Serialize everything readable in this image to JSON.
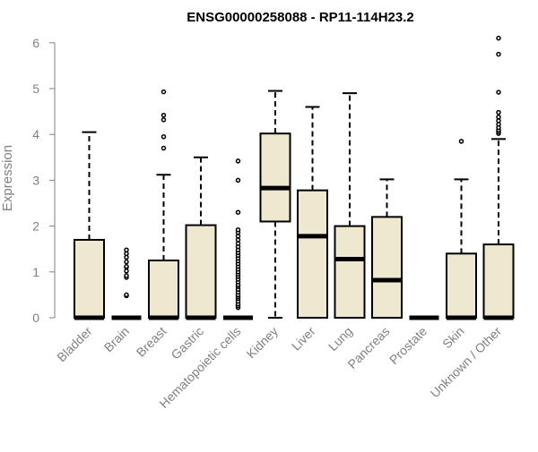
{
  "chart_data": {
    "type": "box",
    "title": "ENSG00000258088 - RP11-114H23.2",
    "xlabel": "",
    "ylabel": "Expression",
    "ylim": [
      0,
      6
    ],
    "yticks": [
      "0",
      "1",
      "2",
      "3",
      "4",
      "5",
      "6"
    ],
    "grid": false,
    "legend": "none",
    "colors": {
      "box_fill": "#efe8d0",
      "stroke": "#000000",
      "axis_text": "#808080",
      "title": "#000000"
    },
    "categories": [
      "Bladder",
      "Brain",
      "Breast",
      "Gastric",
      "Hematopoietic cells",
      "Kidney",
      "Liver",
      "Lung",
      "Pancreas",
      "Prostate",
      "Skin",
      "Unknown / Other"
    ],
    "boxes": [
      {
        "q1": 0,
        "median": 0,
        "q3": 1.7,
        "whisker_low": 0,
        "whisker_high": 4.05,
        "outliers": []
      },
      {
        "q1": 0,
        "median": 0,
        "q3": 0,
        "whisker_low": 0,
        "whisker_high": 0,
        "outliers": [
          0.48,
          0.5,
          0.88,
          0.92,
          1.02,
          1.1,
          1.12,
          1.22,
          1.32,
          1.4,
          1.48
        ]
      },
      {
        "q1": 0,
        "median": 0,
        "q3": 1.25,
        "whisker_low": 0,
        "whisker_high": 3.12,
        "outliers": [
          3.7,
          3.95,
          4.32,
          4.42,
          4.93
        ]
      },
      {
        "q1": 0,
        "median": 0,
        "q3": 2.02,
        "whisker_low": 0,
        "whisker_high": 3.5,
        "outliers": []
      },
      {
        "q1": 0,
        "median": 0,
        "q3": 0,
        "whisker_low": 0,
        "whisker_high": 0,
        "outliers": [
          0.22,
          0.26,
          0.3,
          0.36,
          0.42,
          0.46,
          0.5,
          0.56,
          0.62,
          0.68,
          0.72,
          0.78,
          0.84,
          0.9,
          0.95,
          1.0,
          1.06,
          1.12,
          1.18,
          1.24,
          1.3,
          1.36,
          1.42,
          1.48,
          1.55,
          1.62,
          1.7,
          1.78,
          1.86,
          1.92,
          2.3,
          3.0,
          3.42
        ]
      },
      {
        "q1": 2.1,
        "median": 2.83,
        "q3": 4.02,
        "whisker_low": 0,
        "whisker_high": 4.95,
        "outliers": []
      },
      {
        "q1": 0,
        "median": 1.78,
        "q3": 2.78,
        "whisker_low": 0,
        "whisker_high": 4.6,
        "outliers": []
      },
      {
        "q1": 0,
        "median": 1.28,
        "q3": 2.0,
        "whisker_low": 0,
        "whisker_high": 4.9,
        "outliers": []
      },
      {
        "q1": 0,
        "median": 0.82,
        "q3": 2.2,
        "whisker_low": 0,
        "whisker_high": 3.02,
        "outliers": []
      },
      {
        "q1": 0,
        "median": 0,
        "q3": 0,
        "whisker_low": 0,
        "whisker_high": 0,
        "outliers": []
      },
      {
        "q1": 0,
        "median": 0,
        "q3": 1.4,
        "whisker_low": 0,
        "whisker_high": 3.02,
        "outliers": [
          3.85
        ]
      },
      {
        "q1": 0,
        "median": 0,
        "q3": 1.6,
        "whisker_low": 0,
        "whisker_high": 3.9,
        "outliers": [
          4.02,
          4.06,
          4.1,
          4.15,
          4.22,
          4.3,
          4.38,
          4.48,
          4.92,
          5.75,
          6.1
        ]
      }
    ]
  }
}
